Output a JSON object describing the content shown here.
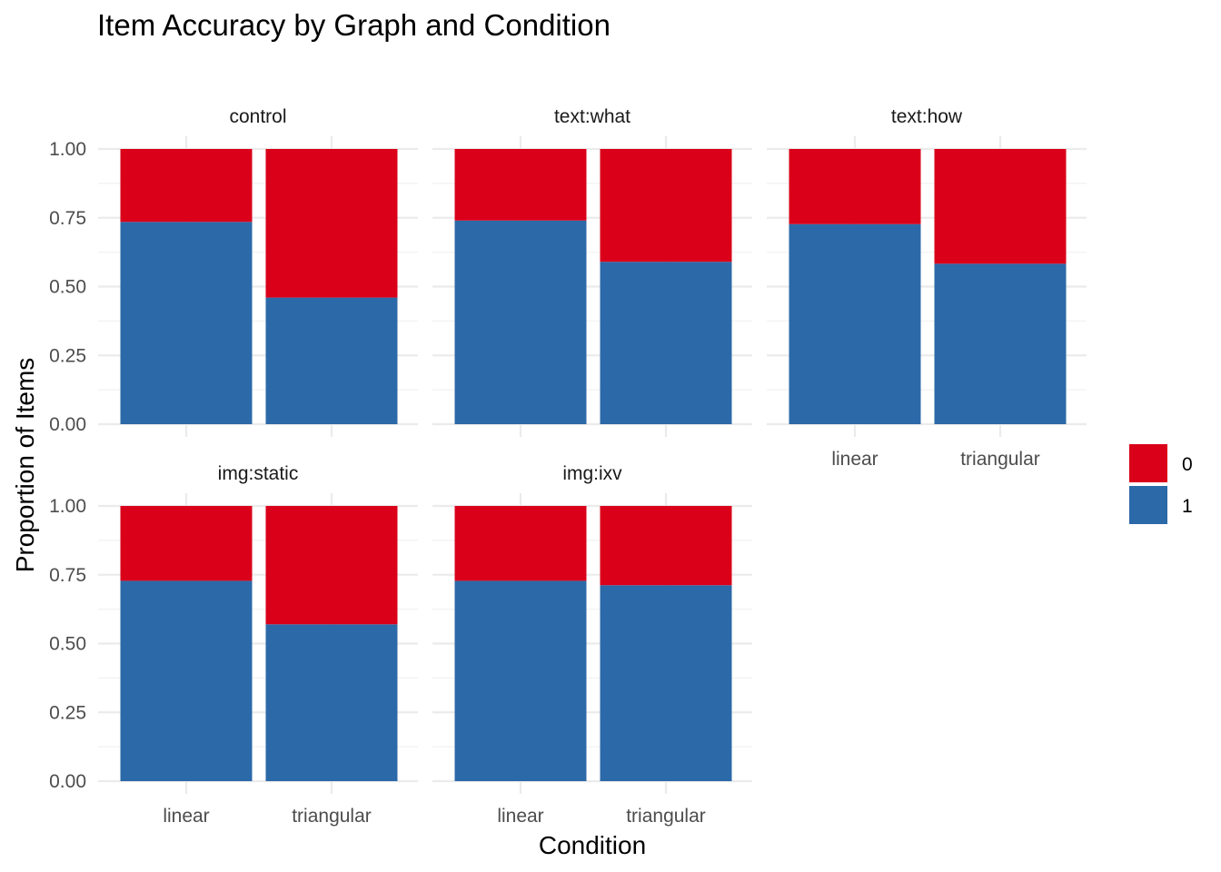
{
  "chart_data": {
    "type": "bar",
    "stacked": true,
    "title": "Item Accuracy by Graph and Condition",
    "xlabel": "Condition",
    "ylabel": "Proportion of Items",
    "ylim": [
      0,
      1
    ],
    "yticks": [
      "0.00",
      "0.25",
      "0.50",
      "0.75",
      "1.00"
    ],
    "categories": [
      "linear",
      "triangular"
    ],
    "legend": {
      "position": "right",
      "entries": [
        {
          "label": "0",
          "color": "#DA001A"
        },
        {
          "label": "1",
          "color": "#2C69A8"
        }
      ]
    },
    "panels": [
      {
        "label": "control",
        "series": [
          {
            "name": "1",
            "values": [
              0.735,
              0.46
            ]
          },
          {
            "name": "0",
            "values": [
              0.265,
              0.54
            ]
          }
        ]
      },
      {
        "label": "text:what",
        "series": [
          {
            "name": "1",
            "values": [
              0.74,
              0.59
            ]
          },
          {
            "name": "0",
            "values": [
              0.26,
              0.41
            ]
          }
        ]
      },
      {
        "label": "text:how",
        "series": [
          {
            "name": "1",
            "values": [
              0.727,
              0.583
            ]
          },
          {
            "name": "0",
            "values": [
              0.273,
              0.417
            ]
          }
        ]
      },
      {
        "label": "img:static",
        "series": [
          {
            "name": "1",
            "values": [
              0.728,
              0.57
            ]
          },
          {
            "name": "0",
            "values": [
              0.272,
              0.43
            ]
          }
        ]
      },
      {
        "label": "img:ixv",
        "series": [
          {
            "name": "1",
            "values": [
              0.728,
              0.712
            ]
          },
          {
            "name": "0",
            "values": [
              0.272,
              0.288
            ]
          }
        ]
      }
    ]
  }
}
